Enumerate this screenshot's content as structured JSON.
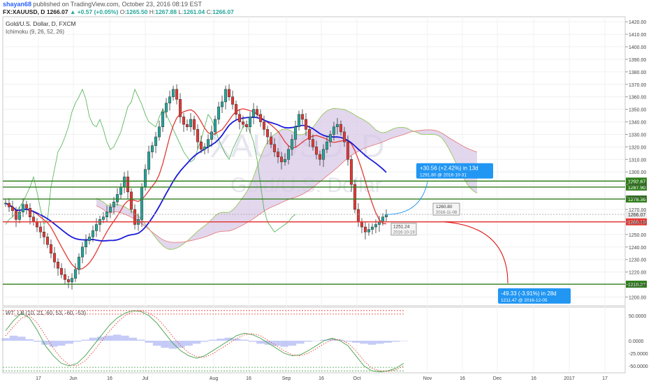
{
  "header": {
    "user": "shayan68",
    "published": "published on TradingView.com, October 23, 2016 08:19 EST",
    "symbol": "FX:XAUUSD, D",
    "last": "1266.07",
    "change": "▲ +0.57 (+0.05%)",
    "o_label": "O:",
    "o": "1265.50",
    "h_label": "H:",
    "h": "1267.88",
    "l_label": "L:",
    "l": "1261.04",
    "c_label": "C:",
    "c": "1266.07"
  },
  "legend": {
    "title": "Gold/U.S. Dollar, D, FXCM",
    "ichimoku": "Ichimoku (9, 26, 52, 26)",
    "oscillator": "WT_LB (10, 21, 60, 53, -60, -53)"
  },
  "watermark": {
    "symbol": "XAUUSD, D",
    "name": "Gold/U.S. Dollar"
  },
  "colors": {
    "up": "#26a69a",
    "down": "#e53935",
    "line_red": "#e53935",
    "line_blue": "#1a1adb",
    "lagging": "#4caf50",
    "cloud": "#d6c6e6",
    "hline_green": "#2e7d1a",
    "hline_red": "#e53935",
    "proj_blue": "#2196f3",
    "proj_red": "#e00000"
  },
  "chart_data": {
    "type": "candlestick",
    "title": "Gold/U.S. Dollar, D, FXCM",
    "y_ticks": [
      1200,
      1210,
      1220,
      1230,
      1240,
      1250,
      1260,
      1270,
      1280,
      1290,
      1300,
      1310,
      1320,
      1330,
      1340,
      1350,
      1360,
      1370,
      1380,
      1390,
      1400,
      1410,
      1420
    ],
    "ylim": [
      1193,
      1424
    ],
    "x_ticks": [
      "17",
      "Jun",
      "16",
      "Jul",
      "Aug",
      "16",
      "Sep",
      "16",
      "Oct",
      "Nov",
      "16",
      "Dec",
      "16",
      "2017",
      "17"
    ],
    "closes": [
      1275,
      1272,
      1269,
      1262,
      1268,
      1274,
      1271,
      1264,
      1260,
      1256,
      1252,
      1248,
      1242,
      1235,
      1228,
      1223,
      1218,
      1214,
      1212,
      1215,
      1222,
      1232,
      1240,
      1245,
      1248,
      1253,
      1258,
      1262,
      1264,
      1268,
      1272,
      1276,
      1282,
      1288,
      1296,
      1284,
      1270,
      1258,
      1262,
      1288,
      1302,
      1316,
      1321,
      1328,
      1336,
      1348,
      1355,
      1360,
      1366,
      1358,
      1344,
      1338,
      1336,
      1342,
      1334,
      1324,
      1318,
      1320,
      1326,
      1332,
      1342,
      1352,
      1356,
      1366,
      1360,
      1354,
      1346,
      1340,
      1338,
      1336,
      1344,
      1350,
      1346,
      1340,
      1334,
      1328,
      1322,
      1316,
      1312,
      1308,
      1310,
      1318,
      1326,
      1336,
      1346,
      1342,
      1334,
      1326,
      1320,
      1314,
      1310,
      1318,
      1324,
      1330,
      1336,
      1338,
      1332,
      1324,
      1310,
      1290,
      1270,
      1260,
      1256,
      1252,
      1254,
      1256,
      1258,
      1260,
      1264,
      1266
    ],
    "horizontal_levels": [
      {
        "value": 1292.67,
        "label": "1292.67",
        "color": "green"
      },
      {
        "value": 1287.9,
        "label": "1287.90",
        "color": "green"
      },
      {
        "value": 1278.36,
        "label": "1278.36",
        "color": "green"
      },
      {
        "value": 1266.07,
        "label": "1266.07",
        "color": "current"
      },
      {
        "value": 1260.1,
        "label": "1260.10",
        "color": "red"
      },
      {
        "value": 1210.27,
        "label": "1210.27",
        "color": "green"
      }
    ],
    "projections": [
      {
        "text": "+30.56 (+2.42%) in 13d",
        "sub": "1291.80 @ 2016-10-31",
        "target": 1292
      },
      {
        "text": "-49.33 (-3.91%) in 28d",
        "sub": "1211.47 @ 2016-12-05",
        "target": 1211
      }
    ],
    "price_notes": [
      {
        "value": "1260.80",
        "date": "2016-11-08"
      },
      {
        "value": "1251.24",
        "date": "2016-10-19"
      }
    ],
    "oscillator": {
      "ticks": [
        "50.0000",
        "0.0000",
        "-25.0000",
        "-50.0000"
      ],
      "tick_values": [
        50,
        0,
        -25,
        -50
      ],
      "levels": [
        60,
        53,
        -60,
        -53
      ],
      "wt1": [
        20,
        40,
        55,
        45,
        20,
        -10,
        -30,
        -45,
        -50,
        -45,
        -30,
        -10,
        10,
        30,
        45,
        55,
        60,
        58,
        50,
        35,
        15,
        -5,
        -20,
        -30,
        -35,
        -30,
        -20,
        -10,
        0,
        10,
        15,
        12,
        5,
        -5,
        -15,
        -25,
        -30,
        -28,
        -20,
        -10,
        0,
        5,
        0,
        -10,
        -30,
        -50,
        -60,
        -62,
        -60,
        -55,
        -45
      ],
      "wt2": [
        10,
        28,
        45,
        50,
        35,
        10,
        -15,
        -35,
        -48,
        -50,
        -40,
        -22,
        -2,
        18,
        36,
        50,
        58,
        60,
        55,
        45,
        28,
        8,
        -10,
        -24,
        -32,
        -33,
        -26,
        -16,
        -6,
        4,
        12,
        14,
        10,
        0,
        -10,
        -20,
        -28,
        -30,
        -25,
        -16,
        -6,
        2,
        2,
        -5,
        -20,
        -40,
        -55,
        -60,
        -61,
        -58,
        -50
      ],
      "histogram": [
        5,
        10,
        8,
        3,
        -2,
        -8,
        -12,
        -10,
        -6,
        -2,
        2,
        6,
        8,
        10,
        12,
        10,
        6,
        2,
        -4,
        -10,
        -14,
        -16,
        -14,
        -10,
        -6,
        -2,
        2,
        4,
        6,
        4,
        2,
        -2,
        -6,
        -8,
        -10,
        -12,
        -10,
        -6,
        -2,
        0,
        2,
        4,
        2,
        -2,
        -4,
        -6,
        -8,
        -6,
        -4,
        -2,
        0
      ]
    }
  }
}
